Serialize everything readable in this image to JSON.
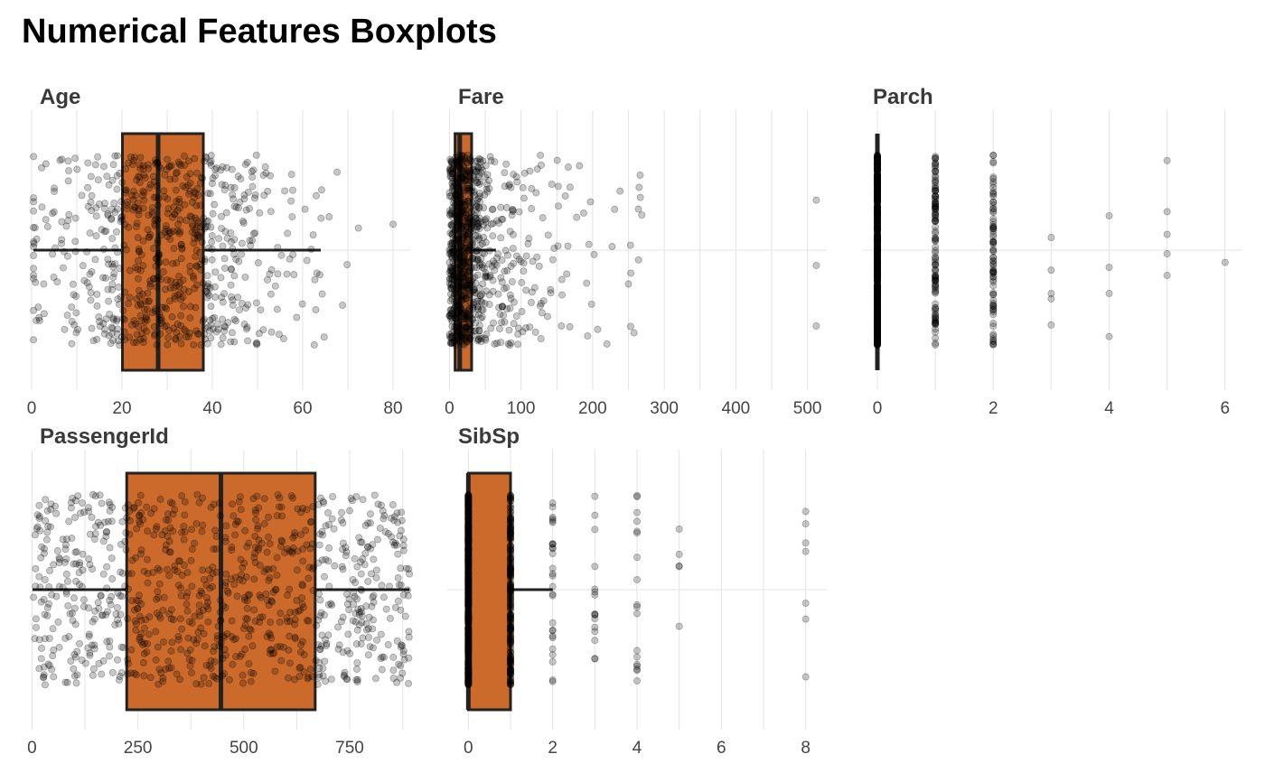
{
  "title": "Numerical Features Boxplots",
  "style": {
    "box_fill": "#cc6a2c",
    "box_stroke": "#222222",
    "point_color": "#000000",
    "grid_color": "#e3e3e3"
  },
  "chart_data": [
    {
      "type": "boxplot",
      "title": "Age",
      "grid": true,
      "xlim": [
        0,
        84
      ],
      "xticks": [
        0,
        20,
        40,
        60,
        80
      ],
      "box": {
        "min": 0.42,
        "q1": 20.1,
        "median": 28,
        "q3": 38,
        "max": 64
      },
      "points": {
        "count": 714,
        "range": [
          0.42,
          80
        ],
        "distribution": "normal",
        "center": 29.7,
        "spread": 14.5
      }
    },
    {
      "type": "boxplot",
      "title": "Fare",
      "grid": true,
      "xlim": [
        -3,
        527
      ],
      "xticks": [
        0,
        100,
        200,
        300,
        400,
        500
      ],
      "box": {
        "min": 0,
        "q1": 7.9,
        "median": 14.45,
        "q3": 31,
        "max": 65
      },
      "points": {
        "count": 891,
        "range": [
          0,
          512.33
        ],
        "distribution": "skewed",
        "center": 14.45,
        "spread": 45
      }
    },
    {
      "type": "boxplot",
      "title": "Parch",
      "grid": true,
      "xlim": [
        -0.25,
        6.3
      ],
      "xticks": [
        0,
        2,
        4,
        6
      ],
      "box": {
        "min": 0,
        "q1": 0,
        "median": 0,
        "q3": 0,
        "max": 0
      },
      "points": {
        "count": 891,
        "range": [
          0,
          6
        ],
        "distribution": "discrete",
        "levels": [
          0,
          1,
          2,
          3,
          4,
          5,
          6
        ],
        "counts": [
          678,
          118,
          80,
          5,
          4,
          5,
          1
        ]
      }
    },
    {
      "type": "boxplot",
      "title": "PassengerId",
      "grid": true,
      "xlim": [
        -1,
        895
      ],
      "xticks": [
        0,
        250,
        500,
        750
      ],
      "box": {
        "min": 1,
        "q1": 223.5,
        "median": 446,
        "q3": 668.5,
        "max": 891
      },
      "points": {
        "count": 891,
        "range": [
          1,
          891
        ],
        "distribution": "uniform"
      }
    },
    {
      "type": "boxplot",
      "title": "SibSp",
      "grid": true,
      "xlim": [
        -0.5,
        8.5
      ],
      "xticks": [
        0,
        2,
        4,
        6,
        8
      ],
      "box": {
        "min": 0,
        "q1": 0,
        "median": 0,
        "q3": 1,
        "max": 2
      },
      "points": {
        "count": 891,
        "range": [
          0,
          8
        ],
        "distribution": "discrete",
        "levels": [
          0,
          1,
          2,
          3,
          4,
          5,
          8
        ],
        "counts": [
          608,
          209,
          28,
          16,
          18,
          5,
          7
        ]
      }
    }
  ]
}
